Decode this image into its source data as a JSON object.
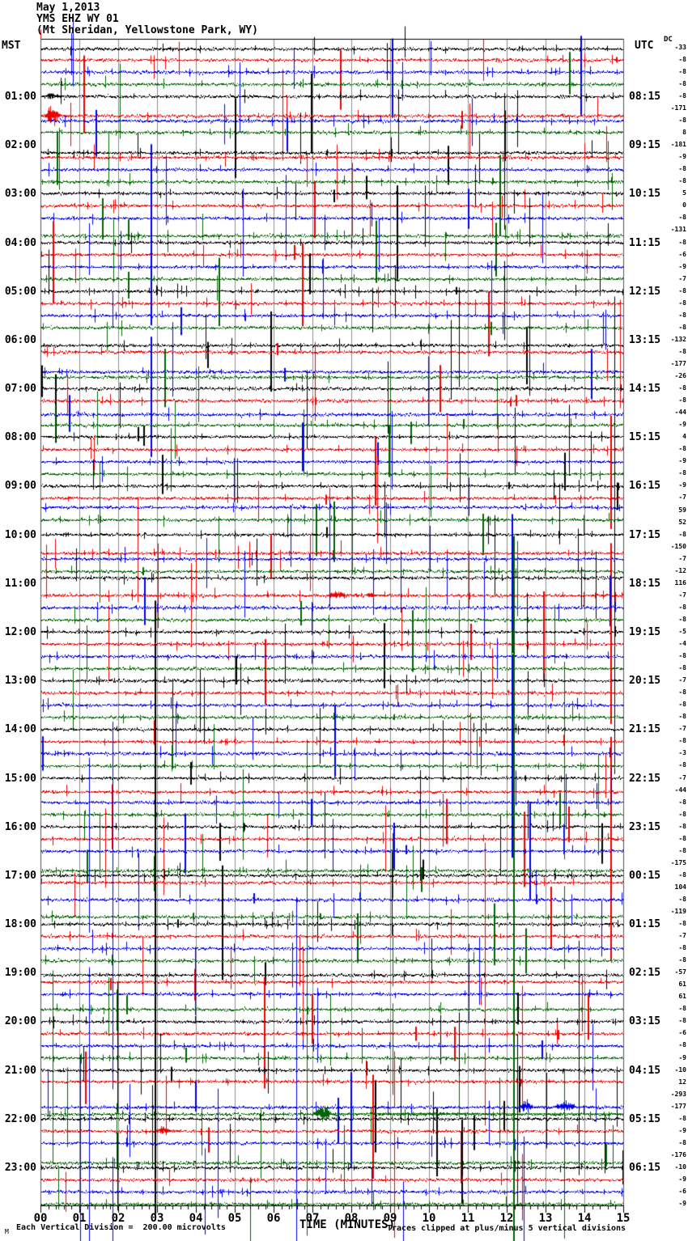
{
  "title": {
    "date": "May 1,2013",
    "station": "YMS EHZ WY 01",
    "location": "(Mt Sheridan, Yellowstone Park, WY)"
  },
  "axes": {
    "left_header": "MST",
    "right_header": "UTC",
    "dc_header": "DC",
    "x_title": "TIME (MINUTES)",
    "x_ticks": [
      "00",
      "01",
      "02",
      "03",
      "04",
      "05",
      "06",
      "07",
      "08",
      "09",
      "10",
      "11",
      "12",
      "13",
      "14",
      "15"
    ]
  },
  "footer": {
    "corner_mark": "M",
    "scale_text": "Each Vertical Division =  200.00 microvolts",
    "clip_note": "Traces clipped at plus/minus 5 vertical divisions"
  },
  "chart_data": {
    "type": "line",
    "kind": "helicorder-seismogram",
    "title": "YMS EHZ WY 01 (Mt Sheridan, Yellowstone Park, WY) May 1,2013",
    "xlabel": "TIME (MINUTES)",
    "x_range_minutes": [
      0,
      15
    ],
    "minutes_per_line": 15,
    "lines_total": 96,
    "microvolts_per_division": 200.0,
    "clip_divisions": 5,
    "left_timezone": "MST",
    "right_timezone": "UTC",
    "colors_cycle": [
      "#000000",
      "#ee0000",
      "#0000ee",
      "#006400"
    ],
    "grid_color": "#8b8b8b",
    "left_labels": [
      "01:00",
      "02:00",
      "03:00",
      "04:00",
      "05:00",
      "06:00",
      "07:00",
      "08:00",
      "09:00",
      "10:00",
      "11:00",
      "12:00",
      "13:00",
      "14:00",
      "15:00",
      "16:00",
      "17:00",
      "18:00",
      "19:00",
      "20:00",
      "21:00",
      "22:00",
      "23:00"
    ],
    "right_labels": [
      "08:15",
      "09:15",
      "10:15",
      "11:15",
      "12:15",
      "13:15",
      "14:15",
      "15:15",
      "16:15",
      "17:15",
      "18:15",
      "19:15",
      "20:15",
      "21:15",
      "22:15",
      "23:15",
      "00:15",
      "01:15",
      "02:15",
      "03:15",
      "04:15",
      "05:15",
      "06:15"
    ],
    "dc_values": [
      -33,
      -8,
      -8,
      -8,
      -8,
      -171,
      -8,
      8,
      -181,
      -9,
      -8,
      -8,
      5,
      0,
      -8,
      -131,
      -8,
      -6,
      -9,
      -7,
      -8,
      -8,
      -8,
      -8,
      -132,
      -8,
      -177,
      -26,
      -8,
      -8,
      -44,
      -9,
      4,
      -8,
      -9,
      -8,
      -9,
      -7,
      59,
      52,
      -8,
      -150,
      -7,
      -12,
      116,
      -7,
      -8,
      -8,
      -5,
      -4,
      -8,
      -8,
      -7,
      -8,
      -8,
      -8,
      -7,
      -8,
      -3,
      -8,
      -7,
      -44,
      -8,
      -8,
      -8,
      -8,
      -8,
      -175,
      -8,
      104,
      -8,
      -119,
      -8,
      -7,
      -8,
      -8,
      -57,
      61,
      61,
      -8,
      -8,
      -6,
      -8,
      -9,
      -10,
      12,
      -293,
      -177,
      -8,
      -9,
      -8,
      -176,
      -10,
      -9,
      -6,
      -9
    ],
    "events": [
      {
        "trace": 5,
        "m0": 0.05,
        "m1": 0.8,
        "amp": 6
      },
      {
        "trace": 6,
        "m0": 0.1,
        "m1": 0.75,
        "amp": 22
      },
      {
        "trace": 46,
        "m0": 7.35,
        "m1": 8.2,
        "amp": 7
      },
      {
        "trace": 46,
        "m0": 8.35,
        "m1": 8.85,
        "amp": 5
      },
      {
        "trace": 88,
        "m0": 7.0,
        "m1": 7.8,
        "amp": 17
      },
      {
        "trace": 88,
        "m0": 7.8,
        "m1": 15.0,
        "amp": 2.5
      },
      {
        "trace": 87,
        "m0": 12.3,
        "m1": 12.95,
        "amp": 12
      },
      {
        "trace": 87,
        "m0": 13.2,
        "m1": 14.2,
        "amp": 10
      },
      {
        "trace": 90,
        "m0": 2.95,
        "m1": 3.6,
        "amp": 8
      }
    ]
  }
}
